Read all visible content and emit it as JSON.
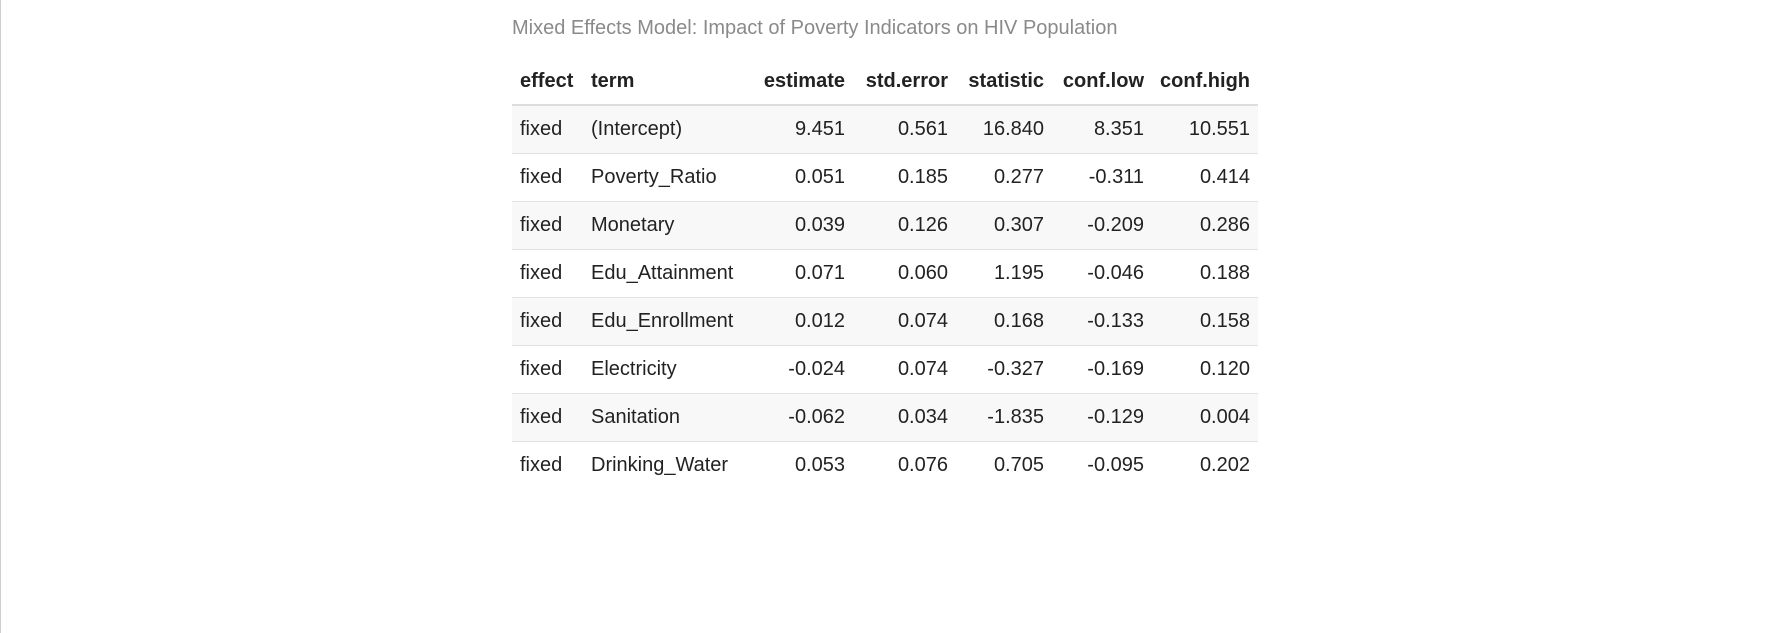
{
  "table": {
    "caption": "Mixed Effects Model: Impact of Poverty Indicators on HIV Population",
    "headers": [
      "effect",
      "term",
      "estimate",
      "std.error",
      "statistic",
      "conf.low",
      "conf.high"
    ],
    "rows": [
      [
        "fixed",
        "(Intercept)",
        "9.451",
        "0.561",
        "16.840",
        "8.351",
        "10.551"
      ],
      [
        "fixed",
        "Poverty_Ratio",
        "0.051",
        "0.185",
        "0.277",
        "-0.311",
        "0.414"
      ],
      [
        "fixed",
        "Monetary",
        "0.039",
        "0.126",
        "0.307",
        "-0.209",
        "0.286"
      ],
      [
        "fixed",
        "Edu_Attainment",
        "0.071",
        "0.060",
        "1.195",
        "-0.046",
        "0.188"
      ],
      [
        "fixed",
        "Edu_Enrollment",
        "0.012",
        "0.074",
        "0.168",
        "-0.133",
        "0.158"
      ],
      [
        "fixed",
        "Electricity",
        "-0.024",
        "0.074",
        "-0.327",
        "-0.169",
        "0.120"
      ],
      [
        "fixed",
        "Sanitation",
        "-0.062",
        "0.034",
        "-1.835",
        "-0.129",
        "0.004"
      ],
      [
        "fixed",
        "Drinking_Water",
        "0.053",
        "0.076",
        "0.705",
        "-0.095",
        "0.202"
      ]
    ]
  }
}
